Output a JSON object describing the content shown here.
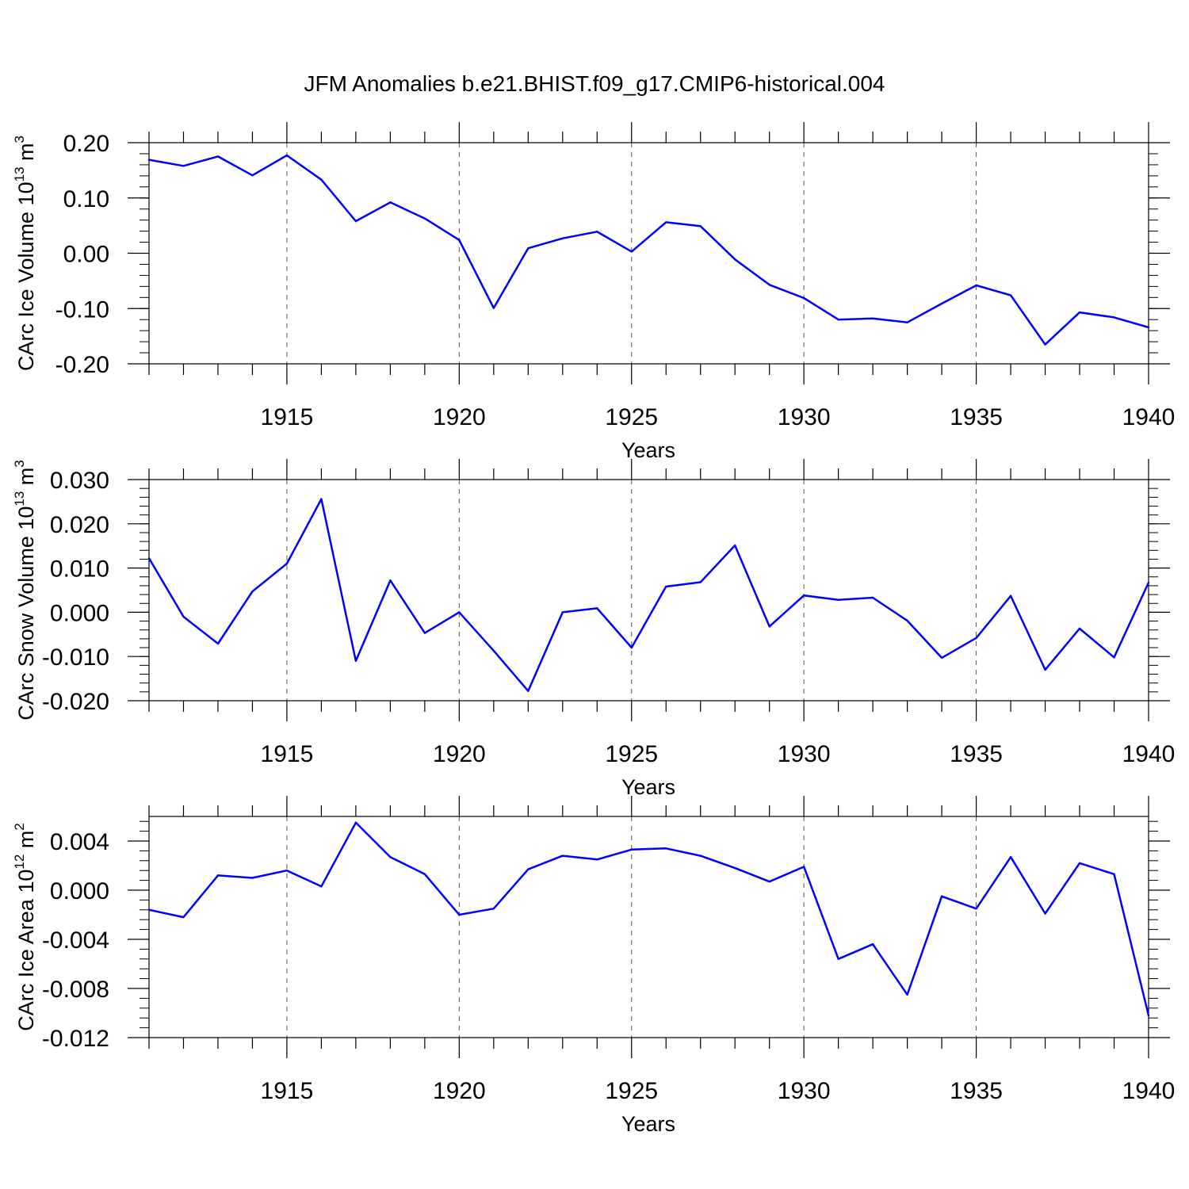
{
  "title": "JFM Anomalies b.e21.BHIST.f09_g17.CMIP6-historical.004",
  "colors": {
    "line": "#0000ff",
    "axis": "#000000",
    "grid": "#555555"
  },
  "chart_data": [
    {
      "type": "line",
      "ylabel_main": "CArc Ice Volume 10",
      "ylabel_sup": "13",
      "ylabel_unit": " m",
      "ylabel_unit_sup": "3",
      "xlabel": "Years",
      "xlim": [
        1911,
        1940
      ],
      "ylim": [
        -0.2,
        0.2
      ],
      "yticks": [
        0.2,
        0.1,
        0.0,
        -0.1,
        -0.2
      ],
      "ytick_labels": [
        "0.20",
        "0.10",
        "0.00",
        "-0.10",
        "-0.20"
      ],
      "xticks": [
        1915,
        1920,
        1925,
        1930,
        1935,
        1940
      ],
      "xtick_labels": [
        "1915",
        "1920",
        "1925",
        "1930",
        "1935",
        "1940"
      ],
      "x": [
        1911,
        1912,
        1913,
        1914,
        1915,
        1916,
        1917,
        1918,
        1919,
        1920,
        1921,
        1922,
        1923,
        1924,
        1925,
        1926,
        1927,
        1928,
        1929,
        1930,
        1931,
        1932,
        1933,
        1934,
        1935,
        1936,
        1937,
        1938,
        1939,
        1940
      ],
      "values": [
        0.169,
        0.158,
        0.175,
        0.141,
        0.177,
        0.133,
        0.058,
        0.092,
        0.063,
        0.024,
        -0.099,
        0.009,
        0.027,
        0.039,
        0.003,
        0.056,
        0.049,
        -0.011,
        -0.057,
        -0.081,
        -0.12,
        -0.118,
        -0.125,
        -0.091,
        -0.058,
        -0.076,
        -0.165,
        -0.107,
        -0.116,
        -0.134
      ]
    },
    {
      "type": "line",
      "ylabel_main": "CArc Snow Volume 10",
      "ylabel_sup": "13",
      "ylabel_unit": " m",
      "ylabel_unit_sup": "3",
      "xlabel": "Years",
      "xlim": [
        1911,
        1940
      ],
      "ylim": [
        -0.02,
        0.03
      ],
      "yticks": [
        0.03,
        0.02,
        0.01,
        0.0,
        -0.01,
        -0.02
      ],
      "ytick_labels": [
        "0.030",
        "0.020",
        "0.010",
        "0.000",
        "-0.010",
        "-0.020"
      ],
      "xticks": [
        1915,
        1920,
        1925,
        1930,
        1935,
        1940
      ],
      "xtick_labels": [
        "1915",
        "1920",
        "1925",
        "1930",
        "1935",
        "1940"
      ],
      "x": [
        1911,
        1912,
        1913,
        1914,
        1915,
        1916,
        1917,
        1918,
        1919,
        1920,
        1921,
        1922,
        1923,
        1924,
        1925,
        1926,
        1927,
        1928,
        1929,
        1930,
        1931,
        1932,
        1933,
        1934,
        1935,
        1936,
        1937,
        1938,
        1939,
        1940
      ],
      "values": [
        0.0122,
        -0.001,
        -0.0071,
        0.0047,
        0.011,
        0.0256,
        -0.011,
        0.0072,
        -0.0047,
        0.0,
        -0.0087,
        -0.0178,
        0.0,
        0.0009,
        -0.008,
        0.0058,
        0.0068,
        0.0151,
        -0.0032,
        0.0038,
        0.0028,
        0.0033,
        -0.0019,
        -0.0103,
        -0.0058,
        0.0037,
        -0.013,
        -0.0037,
        -0.0102,
        0.0067
      ]
    },
    {
      "type": "line",
      "ylabel_main": "CArc Ice Area 10",
      "ylabel_sup": "12",
      "ylabel_unit": " m",
      "ylabel_unit_sup": "2",
      "xlabel": "Years",
      "xlim": [
        1911,
        1940
      ],
      "ylim": [
        -0.012,
        0.006
      ],
      "yticks": [
        0.004,
        0.0,
        -0.004,
        -0.008,
        -0.012
      ],
      "ytick_labels": [
        "0.004",
        "0.000",
        "-0.004",
        "-0.008",
        "-0.012"
      ],
      "xticks": [
        1915,
        1920,
        1925,
        1930,
        1935,
        1940
      ],
      "xtick_labels": [
        "1915",
        "1920",
        "1925",
        "1930",
        "1935",
        "1940"
      ],
      "x": [
        1911,
        1912,
        1913,
        1914,
        1915,
        1916,
        1917,
        1918,
        1919,
        1920,
        1921,
        1922,
        1923,
        1924,
        1925,
        1926,
        1927,
        1928,
        1929,
        1930,
        1931,
        1932,
        1933,
        1934,
        1935,
        1936,
        1937,
        1938,
        1939,
        1940
      ],
      "values": [
        -0.0016,
        -0.0022,
        0.0012,
        0.001,
        0.0016,
        0.0003,
        0.0055,
        0.0027,
        0.0013,
        -0.002,
        -0.0015,
        0.0017,
        0.0028,
        0.0025,
        0.0033,
        0.0034,
        0.0028,
        0.0018,
        0.0007,
        0.0019,
        -0.0056,
        -0.0044,
        -0.0085,
        -0.0005,
        -0.0015,
        0.0027,
        -0.0019,
        0.0022,
        0.0013,
        -0.0102
      ]
    }
  ]
}
